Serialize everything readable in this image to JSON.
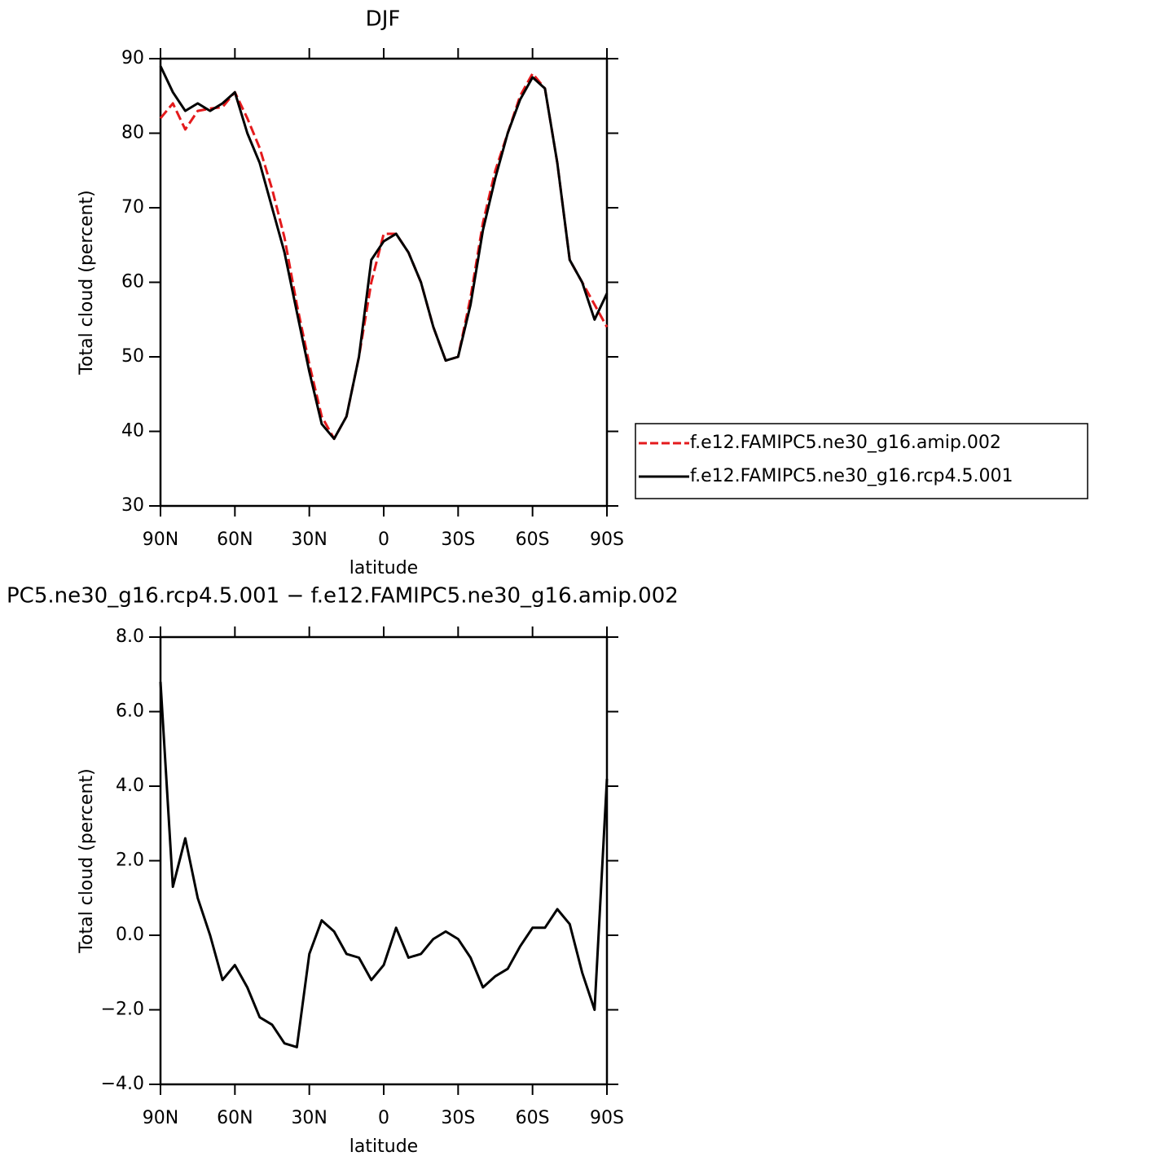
{
  "chart_data": [
    {
      "type": "line",
      "title": "DJF",
      "xlabel": "latitude",
      "ylabel": "Total cloud (percent)",
      "x": [
        90,
        85,
        80,
        75,
        70,
        65,
        60,
        55,
        50,
        45,
        40,
        35,
        30,
        25,
        20,
        15,
        10,
        5,
        0,
        -5,
        -10,
        -15,
        -20,
        -25,
        -30,
        -35,
        -40,
        -45,
        -50,
        -55,
        -60,
        -65,
        -70,
        -75,
        -80,
        -85,
        -90
      ],
      "series": [
        {
          "name": "f.e12.FAMIPC5.ne30_g16.amip.002",
          "color": "#e41a1c",
          "line_style": "dashed",
          "values": [
            82,
            84,
            80.5,
            83,
            83.3,
            83.5,
            85.5,
            82,
            78,
            72.5,
            66,
            57,
            49,
            42,
            39,
            42,
            50,
            60,
            66.5,
            66.5,
            64,
            60,
            54,
            49.5,
            50,
            58,
            68,
            75,
            80,
            85,
            88,
            86,
            76,
            63,
            60,
            57,
            54
          ]
        },
        {
          "name": "f.e12.FAMIPC5.ne30_g16.rcp4.5.001",
          "color": "#000000",
          "line_style": "solid",
          "values": [
            89,
            85.5,
            83,
            84,
            83,
            84,
            85.5,
            80,
            76,
            70,
            64,
            56,
            48,
            41,
            39,
            42,
            50,
            63,
            65.5,
            66.5,
            64,
            60,
            54,
            49.5,
            50,
            57,
            67,
            74,
            80,
            84.5,
            87.5,
            86,
            76,
            63,
            60,
            55,
            58.5
          ]
        }
      ],
      "xlim": [
        90,
        -90
      ],
      "xticks": [
        {
          "value": 90,
          "label": "90N"
        },
        {
          "value": 60,
          "label": "60N"
        },
        {
          "value": 30,
          "label": "30N"
        },
        0,
        {
          "value": -30,
          "label": "30S"
        },
        {
          "value": -60,
          "label": "60S"
        },
        {
          "value": -90,
          "label": "90S"
        }
      ],
      "ylim": [
        30,
        90
      ],
      "yticks": [
        30,
        40,
        50,
        60,
        70,
        80,
        90
      ],
      "legend": "right"
    },
    {
      "type": "line",
      "title": "PC5.ne30_g16.rcp4.5.001 − f.e12.FAMIPC5.ne30_g16.amip.002",
      "xlabel": "latitude",
      "ylabel": "Total cloud (percent)",
      "x": [
        90,
        85,
        80,
        75,
        70,
        65,
        60,
        55,
        50,
        45,
        40,
        35,
        30,
        25,
        20,
        15,
        10,
        5,
        0,
        -5,
        -10,
        -15,
        -20,
        -25,
        -30,
        -35,
        -40,
        -45,
        -50,
        -55,
        -60,
        -65,
        -70,
        -75,
        -80,
        -85,
        -90
      ],
      "series": [
        {
          "color": "#000000",
          "line_style": "solid",
          "values": [
            6.8,
            1.3,
            2.6,
            1.0,
            0.0,
            -1.2,
            -0.8,
            -1.4,
            -2.2,
            -2.4,
            -2.9,
            -3.0,
            -0.5,
            0.4,
            0.1,
            -0.5,
            -0.6,
            -1.2,
            -0.8,
            0.2,
            -0.6,
            -0.5,
            -0.1,
            0.1,
            -0.1,
            -0.6,
            -1.4,
            -1.1,
            -0.9,
            -0.3,
            0.2,
            0.2,
            0.7,
            0.3,
            -1.0,
            -2.0,
            4.2
          ]
        }
      ],
      "xlim": [
        90,
        -90
      ],
      "xticks": [
        {
          "value": 90,
          "label": "90N"
        },
        {
          "value": 60,
          "label": "60N"
        },
        {
          "value": 30,
          "label": "30N"
        },
        0,
        {
          "value": -30,
          "label": "30S"
        },
        {
          "value": -60,
          "label": "60S"
        },
        {
          "value": -90,
          "label": "90S"
        }
      ],
      "ylim": [
        -4,
        8
      ],
      "yticks": [
        {
          "value": -4,
          "label": "−4.0"
        },
        {
          "value": -2,
          "label": "−2.0"
        },
        {
          "value": 0,
          "label": "0.0"
        },
        {
          "value": 2,
          "label": "2.0"
        },
        {
          "value": 4,
          "label": "4.0"
        },
        {
          "value": 6,
          "label": "6.0"
        },
        {
          "value": 8,
          "label": "8.0"
        }
      ]
    }
  ]
}
